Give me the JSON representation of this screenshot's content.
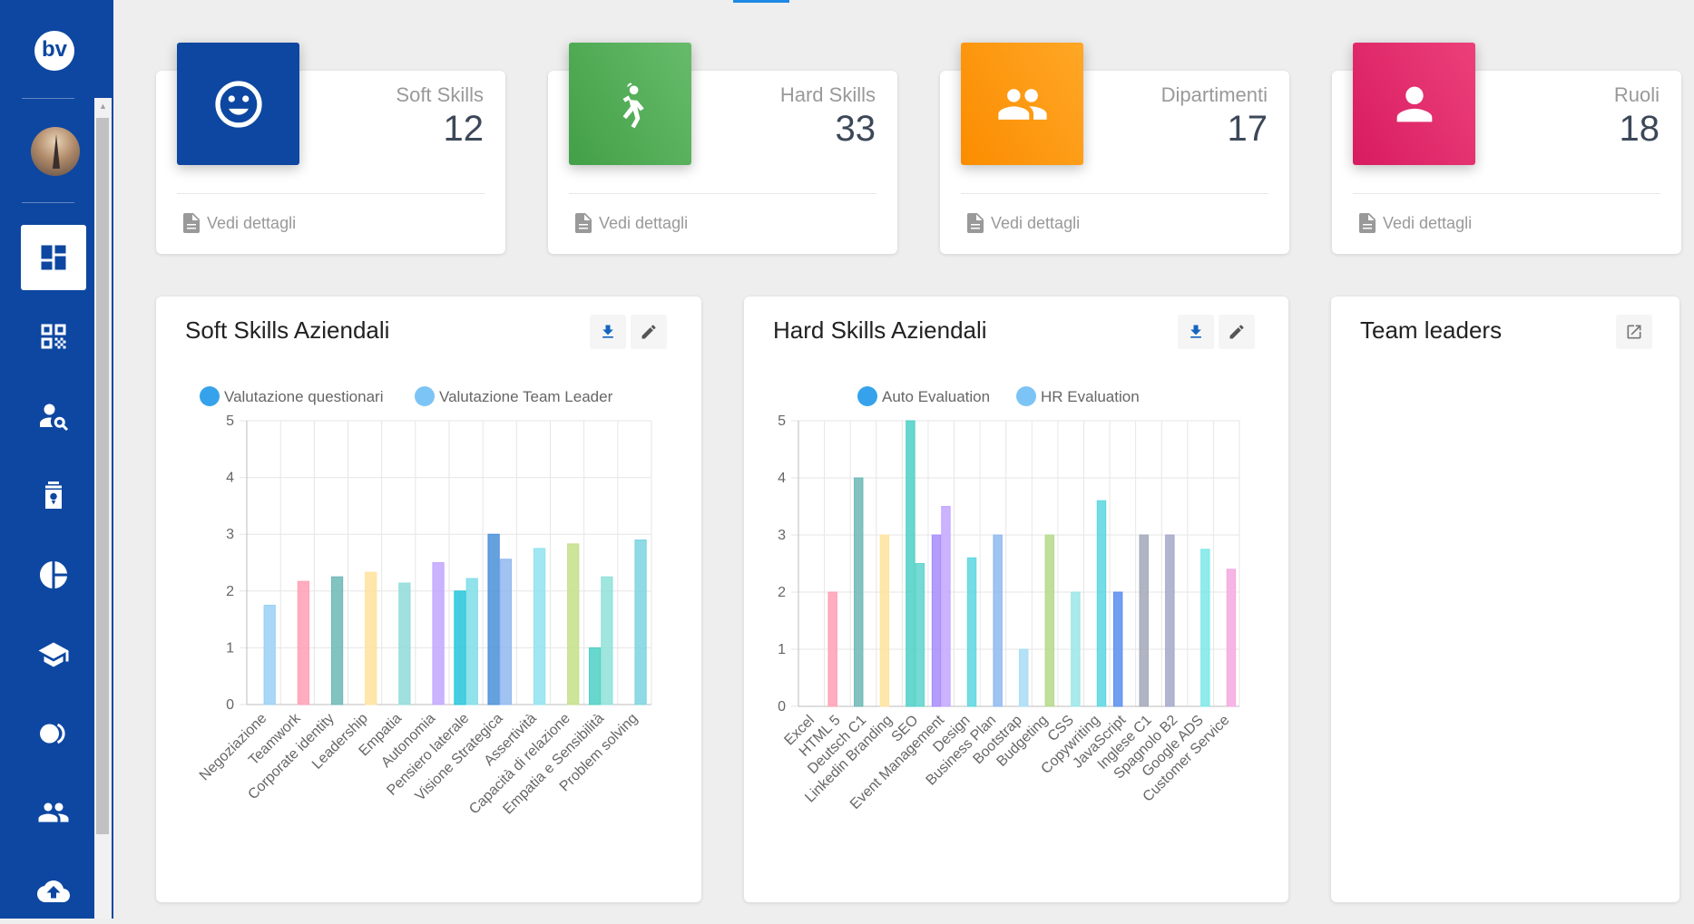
{
  "sidebar": {
    "logo_text": "bv",
    "nav_icons": [
      "dashboard-icon",
      "qr-code-icon",
      "user-search-icon",
      "badge-icon",
      "pie-chart-icon",
      "school-icon",
      "toggle-icon",
      "group-icon",
      "cloud-upload-icon"
    ]
  },
  "stats": [
    {
      "label": "Soft Skills",
      "value": "12",
      "footer": "Vedi dettagli",
      "color": "#0d47a1",
      "icon": "smile-icon"
    },
    {
      "label": "Hard Skills",
      "value": "33",
      "footer": "Vedi dettagli",
      "color": "#4caf50",
      "icon": "athlete-icon"
    },
    {
      "label": "Dipartimenti",
      "value": "17",
      "footer": "Vedi dettagli",
      "color": "#ff9800",
      "icon": "people-icon"
    },
    {
      "label": "Ruoli",
      "value": "18",
      "footer": "Vedi dettagli",
      "color": "#e91e63",
      "icon": "person-icon"
    }
  ],
  "panels": {
    "soft_title": "Soft Skills Aziendali",
    "hard_title": "Hard Skills Aziendali",
    "team_title": "Team leaders"
  },
  "chart_data": [
    {
      "type": "bar",
      "title": "Soft Skills Aziendali",
      "categories": [
        "Negoziazione",
        "Teamwork",
        "Corporate identity",
        "Leadership",
        "Empatia",
        "Autonomia",
        "Pensiero laterale",
        "Visione Strategica",
        "Assertività",
        "Capacità di relazione",
        "Empatia e Sensibilità",
        "Problem solving"
      ],
      "series": [
        {
          "name": "Valutazione questionari",
          "values": [
            null,
            null,
            null,
            null,
            null,
            null,
            2.0,
            3.0,
            null,
            null,
            1.0,
            null
          ]
        },
        {
          "name": "Valutazione Team Leader",
          "values": [
            1.75,
            2.17,
            2.25,
            2.33,
            2.14,
            2.5,
            2.22,
            2.56,
            2.75,
            2.83,
            2.25,
            2.9
          ]
        }
      ],
      "legend": [
        "Valutazione questionari",
        "Valutazione Team Leader"
      ],
      "ylim": [
        0,
        5
      ],
      "yticks": [
        "0",
        "1",
        "2",
        "3",
        "4",
        "5"
      ],
      "colors": {
        "Valutazione questionari": [
          "#9ad0f5",
          "#ff9fb4",
          "#6cb8b5",
          "#ffe29c",
          "#8fdcd9",
          "#c3a6ff",
          "#26c6da",
          "#4a90d9",
          "#8fe3f0",
          "#c5df8a",
          "#4dd0c4",
          "#7ad4e0"
        ],
        "Valutazione Team Leader": [
          "#9ad0f5",
          "#ff9fb4",
          "#6cb8b5",
          "#ffe29c",
          "#8fdcd9",
          "#c3a6ff",
          "#7fdde8",
          "#8fb8f0",
          "#8fe3f0",
          "#c5df8a",
          "#8fe0d8",
          "#7ad4e0"
        ]
      },
      "legend_colors": [
        "#36a2eb",
        "#7cc4f5"
      ]
    },
    {
      "type": "bar",
      "title": "Hard Skills Aziendali",
      "categories": [
        "Excel",
        "HTML 5",
        "Deutsch C1",
        "Linkedin Branding",
        "SEO",
        "Event Management",
        "Design",
        "Business Plan",
        "Bootstrap",
        "Budgeting",
        "CSS",
        "Copywriting",
        "JavaScript",
        "Inglese C1",
        "Spagnolo B2",
        "Google ADS",
        "Customer Service"
      ],
      "series": [
        {
          "name": "Auto Evaluation",
          "values": [
            null,
            2,
            4,
            3,
            5,
            3,
            null,
            null,
            null,
            null,
            null,
            null,
            2,
            3,
            3,
            null,
            null
          ]
        },
        {
          "name": "HR Evaluation",
          "values": [
            null,
            null,
            null,
            null,
            2.5,
            3.5,
            2.6,
            3,
            1,
            3,
            2,
            3.6,
            null,
            null,
            null,
            2.75,
            2.4
          ]
        }
      ],
      "legend": [
        "Auto Evaluation",
        "HR Evaluation"
      ],
      "ylim": [
        0,
        5
      ],
      "yticks": [
        "0",
        "1",
        "2",
        "3",
        "4",
        "5"
      ],
      "colors": {
        "Auto Evaluation": [
          "#9ad0f5",
          "#ff9fb4",
          "#6cb8b5",
          "#ffe29c",
          "#4dd0c4",
          "#a78bfa",
          "#5cd6e0",
          "#8fb8f0",
          "#a8dcf5",
          "#b5d98a",
          "#9ae6e6",
          "#5cd6e0",
          "#5b8def",
          "#a3a8b8",
          "#a3a8c8",
          "#7de8e8",
          "#f5a8e0"
        ],
        "HR Evaluation": [
          "#9ad0f5",
          "#ff9fb4",
          "#6cb8b5",
          "#ffe29c",
          "#5dd3cc",
          "#c3a6ff",
          "#5cd6e0",
          "#8fb8f0",
          "#a8dcf5",
          "#b5d98a",
          "#9ae6e6",
          "#5cd6e0",
          "#5b8def",
          "#a3a8b8",
          "#a3a8c8",
          "#7de8e8",
          "#f5a8e0"
        ]
      },
      "legend_colors": [
        "#36a2eb",
        "#7cc4f5"
      ]
    }
  ]
}
